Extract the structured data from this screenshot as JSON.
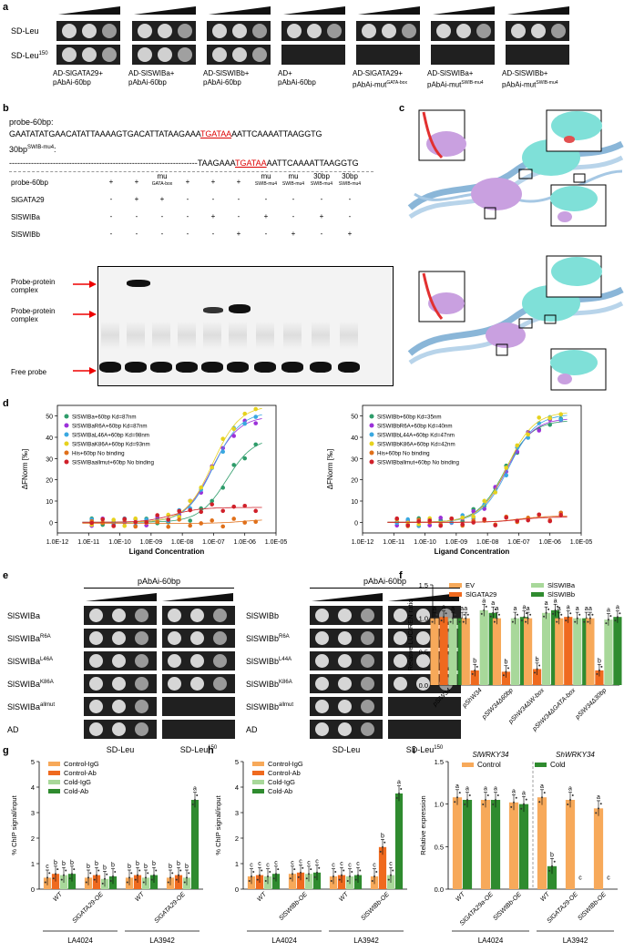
{
  "panels": {
    "a": "a",
    "b": "b",
    "c": "c",
    "d": "d",
    "e": "e",
    "f": "f",
    "g": "g",
    "h": "h",
    "i": "i"
  },
  "panel_a": {
    "row_labels": [
      "SD-Leu",
      "SD-Leu150"
    ],
    "row_label_base": "SD-Leu",
    "row_label_sup": "150",
    "columns": [
      {
        "l1": "AD-SlGATA29+",
        "l2": "pAbAi-60bp",
        "l2sup": ""
      },
      {
        "l1": "AD-SlSWIBa+",
        "l2": "pAbAi-60bp",
        "l2sup": ""
      },
      {
        "l1": "AD-SlSWIBb+",
        "l2": "pAbAi-60bp",
        "l2sup": ""
      },
      {
        "l1": "AD+",
        "l2": "pAbAi-60bp",
        "l2sup": ""
      },
      {
        "l1": "AD-SlGATA29+",
        "l2": "pAbAi-mut",
        "l2sup": "GATA-box"
      },
      {
        "l1": "AD-SlSWIBa+",
        "l2": "pAbAi-mut",
        "l2sup": "SWIB-mu4"
      },
      {
        "l1": "AD-SlSWIBb+",
        "l2": "pAbAi-mut",
        "l2sup": "SWIB-mu4"
      }
    ]
  },
  "panel_b": {
    "probe_label": "probe-60bp:",
    "probe_seq_pre": "GAATATATGAACATATTAAAAGTGACATTATAAGAAA",
    "probe_seq_mid": "TGATAA",
    "probe_seq_post": "AATTCAAAATTAAGGTG",
    "mut_label": "30bp",
    "mut_label_sup": "SWIB-mu4",
    "mut_seq_pre": "TAAGAAA",
    "mut_seq_mid": "TGATAA",
    "mut_seq_post": "AATTCAAAATTAAGGTG",
    "table_rows": [
      {
        "label": "probe-60bp",
        "cells": [
          "+",
          "+",
          "mu",
          "+",
          "+",
          "+",
          "mu",
          "mu",
          "30bp",
          "30bp"
        ]
      },
      {
        "label": "SlGATA29",
        "cells": [
          "-",
          "+",
          "+",
          "-",
          "-",
          "-",
          "-",
          "-",
          "-",
          "-"
        ]
      },
      {
        "label": "SlSWIBa",
        "cells": [
          "-",
          "-",
          "-",
          "-",
          "+",
          "-",
          "+",
          "-",
          "+",
          "-"
        ]
      },
      {
        "label": "SlSWIBb",
        "cells": [
          "-",
          "-",
          "-",
          "-",
          "-",
          "+",
          "-",
          "+",
          "-",
          "+"
        ]
      }
    ],
    "mu_subs": [
      "GATA-box",
      "SWIB-mu4",
      "SWIB-mu4",
      "SWIB-mu4",
      "SWIB-mu4"
    ],
    "gel_labels": [
      "Probe-protein complex",
      "Probe-protein complex",
      "Free probe"
    ]
  },
  "panel_d": {
    "left": {
      "ylabel": "ΔFNorm [‰]",
      "xlabel": "Ligand Concentration",
      "yticks": [
        "0",
        "10",
        "20",
        "30",
        "40",
        "50"
      ],
      "xticks": [
        "1.0E-12",
        "1.0E-11",
        "1.0E-10",
        "1.0E-09",
        "1.0E-08",
        "1.0E-07",
        "1.0E-06",
        "1.0E-05"
      ],
      "legend": [
        {
          "text": "SlSWIBa+60bp Kd=87nm",
          "color": "#2e9c6a"
        },
        {
          "text": "SlSWIBaR6A+60bp Kd=87nm",
          "color": "#9b30d9"
        },
        {
          "text": "SlSWIBaL46A+60bp Kd=98nm",
          "color": "#3aa8e0"
        },
        {
          "text": "SlSWIBaK86A+60bp Kd=93nm",
          "color": "#e6d21e"
        },
        {
          "text": "His+60bp No binding",
          "color": "#e0701a"
        },
        {
          "text": "SlSWIBaallmut+60bp No binding",
          "color": "#d0202a"
        }
      ]
    },
    "right": {
      "ylabel": "ΔFNorm [‰]",
      "xlabel": "Ligand Concentration",
      "yticks": [
        "0",
        "10",
        "20",
        "30",
        "40",
        "50"
      ],
      "xticks": [
        "1.0E-12",
        "1.0E-11",
        "1.0E-10",
        "1.0E-09",
        "1.0E-08",
        "1.0E-07",
        "1.0E-06",
        "1.0E-05"
      ],
      "legend": [
        {
          "text": "SlSWIBb+60bp Kd=35nm",
          "color": "#2e9c6a"
        },
        {
          "text": "SlSWIBbR6A+60bp Kd=40nm",
          "color": "#9b30d9"
        },
        {
          "text": "SlSWIBbL44A+60bp Kd=47nm",
          "color": "#3aa8e0"
        },
        {
          "text": "SlSWIBbK86A+60bp Kd=42nm",
          "color": "#e6d21e"
        },
        {
          "text": "His+60bp No binding",
          "color": "#e0701a"
        },
        {
          "text": "SlSWIBballmut+60bp No binding",
          "color": "#d0202a"
        }
      ]
    }
  },
  "panel_e": {
    "title_left": "pAbAi-60bp",
    "title_right": "pAbAi-60bp",
    "left_rows": [
      {
        "base": "SlSWIBa",
        "sup": ""
      },
      {
        "base": "SlSWIBa",
        "sup": "R6A"
      },
      {
        "base": "SlSWIBa",
        "sup": "L46A"
      },
      {
        "base": "SlSWIBa",
        "sup": "K86A"
      },
      {
        "base": "SlSWIBa",
        "sup": "allmut"
      },
      {
        "base": "AD",
        "sup": ""
      }
    ],
    "right_rows": [
      {
        "base": "SlSWIBb",
        "sup": ""
      },
      {
        "base": "SlSWIBb",
        "sup": "R6A"
      },
      {
        "base": "SlSWIBb",
        "sup": "L44A"
      },
      {
        "base": "SlSWIBb",
        "sup": "K86A"
      },
      {
        "base": "SlSWIBb",
        "sup": "allmut"
      },
      {
        "base": "AD",
        "sup": ""
      }
    ],
    "foot_left": "SD-Leu",
    "foot_right": "SD-Leu",
    "foot_right_sup": "150"
  },
  "chart_data": [
    {
      "id": "f",
      "type": "bar",
      "ylabel": "Relative LUC/REN ratio",
      "ylim": [
        0,
        1.5
      ],
      "yticks": [
        "0.0",
        "0.5",
        "1.0",
        "1.5"
      ],
      "categories": [
        "pSlW34",
        "pShW34",
        "pSlW34Δ60bp",
        "pShW34ΔW-box",
        "pShW34ΔGATA-box",
        "pSlW34Δ30bp"
      ],
      "series": [
        {
          "name": "EV",
          "color": "#f7a95a",
          "values": [
            1.0,
            1.0,
            1.0,
            1.0,
            1.0,
            1.0
          ]
        },
        {
          "name": "SlGATA29",
          "color": "#ef6a1f",
          "values": [
            1.02,
            0.22,
            0.2,
            0.24,
            1.02,
            0.22
          ]
        },
        {
          "name": "SlSWIBa",
          "color": "#a8d89a",
          "values": [
            1.0,
            1.12,
            1.0,
            1.08,
            1.0,
            0.98
          ]
        },
        {
          "name": "SlSWIBb",
          "color": "#2f8b2f",
          "values": [
            1.0,
            1.08,
            1.02,
            1.12,
            1.0,
            1.02
          ]
        }
      ],
      "letters": [
        [
          "a",
          "a",
          "a",
          "a"
        ],
        [
          "a",
          "b",
          "a",
          "a"
        ],
        [
          "a",
          "b",
          "a",
          "a"
        ],
        [
          "a",
          "b",
          "a",
          "a"
        ],
        [
          "a",
          "a",
          "a",
          "a"
        ],
        [
          "a",
          "b",
          "a",
          "a"
        ]
      ]
    },
    {
      "id": "g",
      "type": "bar",
      "ylabel": "% ChIP signal/input",
      "ylim": [
        0,
        5
      ],
      "yticks": [
        "0",
        "1",
        "2",
        "3",
        "4",
        "5"
      ],
      "categories": [
        "WT",
        "SlGATA29-OE",
        "WT",
        "SlGATA29-OE"
      ],
      "groups": [
        "LA4024",
        "LA3942"
      ],
      "series": [
        {
          "name": "Control-IgG",
          "color": "#f7a95a",
          "values": [
            0.45,
            0.45,
            0.45,
            0.45
          ]
        },
        {
          "name": "Control-Ab",
          "color": "#ef6a1f",
          "values": [
            0.6,
            0.55,
            0.55,
            0.55
          ]
        },
        {
          "name": "Cold-IgG",
          "color": "#a8d89a",
          "values": [
            0.55,
            0.4,
            0.45,
            0.45
          ]
        },
        {
          "name": "Cold-Ab",
          "color": "#2f8b2f",
          "values": [
            0.6,
            0.5,
            0.55,
            3.5
          ]
        }
      ],
      "letters": [
        [
          "c",
          "b",
          "b",
          "b"
        ],
        [
          "b",
          "b",
          "b",
          "b"
        ],
        [
          "b",
          "b",
          "b",
          "b"
        ],
        [
          "b",
          "b",
          "b",
          "a"
        ]
      ]
    },
    {
      "id": "h",
      "type": "bar",
      "ylabel": "% ChIP signal/input",
      "ylim": [
        0,
        5
      ],
      "yticks": [
        "0",
        "1",
        "2",
        "3",
        "4",
        "5"
      ],
      "categories": [
        "WT",
        "SlSWIBb-OE",
        "WT",
        "SlSWIBb-OE"
      ],
      "groups": [
        "LA4024",
        "LA3942"
      ],
      "series": [
        {
          "name": "Control-IgG",
          "color": "#f7a95a",
          "values": [
            0.5,
            0.6,
            0.5,
            0.5
          ]
        },
        {
          "name": "Control-Ab",
          "color": "#ef6a1f",
          "values": [
            0.55,
            0.65,
            0.55,
            1.65
          ]
        },
        {
          "name": "Cold-IgG",
          "color": "#a8d89a",
          "values": [
            0.5,
            0.6,
            0.5,
            0.55
          ]
        },
        {
          "name": "Cold-Ab",
          "color": "#2f8b2f",
          "values": [
            0.6,
            0.65,
            0.55,
            3.75
          ]
        }
      ],
      "letters": [
        [
          "c",
          "c",
          "c",
          "c"
        ],
        [
          "c",
          "c",
          "c",
          "c"
        ],
        [
          "c",
          "c",
          "c",
          "c"
        ],
        [
          "c",
          "b",
          "c",
          "a"
        ]
      ]
    },
    {
      "id": "i",
      "type": "bar",
      "ylabel": "Relative expression",
      "ylim": [
        0,
        1.5
      ],
      "yticks": [
        "0.0",
        "0.5",
        "1.0",
        "1.5"
      ],
      "titles": [
        "SlWRKY34",
        "ShWRKY34"
      ],
      "categories": [
        "WT",
        "SlGATA29a-OE",
        "SlSWIBb-OE",
        "WT",
        "SlGATA29-OE",
        "SlSWIBb-OE"
      ],
      "groups": [
        "LA4024",
        "LA3942"
      ],
      "series": [
        {
          "name": "Control",
          "color": "#f7a95a",
          "values": [
            1.08,
            1.05,
            1.02,
            1.08,
            1.05,
            0.95
          ]
        },
        {
          "name": "Cold",
          "color": "#2f8b2f",
          "values": [
            1.05,
            1.05,
            1.0,
            0.27,
            0.0,
            0.0
          ]
        }
      ],
      "letters": [
        [
          "a",
          "a"
        ],
        [
          "a",
          "a"
        ],
        [
          "a",
          "a"
        ],
        [
          "a",
          "b"
        ],
        [
          "a",
          "c"
        ],
        [
          "a",
          "c"
        ]
      ]
    }
  ]
}
